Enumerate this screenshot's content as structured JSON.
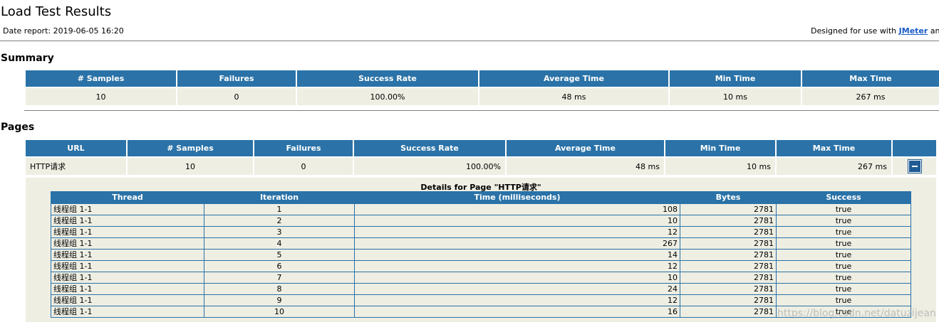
{
  "header": {
    "title": "Load Test Results",
    "date_report": "Date report: 2019-06-05 16:20",
    "designed_prefix": "Designed for use with ",
    "designed_link": "JMeter",
    "designed_suffix": " and"
  },
  "summary": {
    "heading": "Summary",
    "columns": [
      "# Samples",
      "Failures",
      "Success Rate",
      "Average Time",
      "Min Time",
      "Max Time"
    ],
    "row": [
      "10",
      "0",
      "100.00%",
      "48 ms",
      "10 ms",
      "267 ms"
    ]
  },
  "pages": {
    "heading": "Pages",
    "columns": [
      "URL",
      "# Samples",
      "Failures",
      "Success Rate",
      "Average Time",
      "Min Time",
      "Max Time"
    ],
    "row": [
      "HTTP请求",
      "10",
      "0",
      "100.00%",
      "48 ms",
      "10 ms",
      "267 ms"
    ],
    "toggle_icon": "collapse-minus-icon"
  },
  "details": {
    "title": "Details for Page \"HTTP请求\"",
    "columns": [
      "Thread",
      "Iteration",
      "Time (milliseconds)",
      "Bytes",
      "Success"
    ],
    "rows": [
      [
        "线程组 1-1",
        "1",
        "108",
        "2781",
        "true"
      ],
      [
        "线程组 1-1",
        "2",
        "10",
        "2781",
        "true"
      ],
      [
        "线程组 1-1",
        "3",
        "12",
        "2781",
        "true"
      ],
      [
        "线程组 1-1",
        "4",
        "267",
        "2781",
        "true"
      ],
      [
        "线程组 1-1",
        "5",
        "14",
        "2781",
        "true"
      ],
      [
        "线程组 1-1",
        "6",
        "12",
        "2781",
        "true"
      ],
      [
        "线程组 1-1",
        "7",
        "10",
        "2781",
        "true"
      ],
      [
        "线程组 1-1",
        "8",
        "24",
        "2781",
        "true"
      ],
      [
        "线程组 1-1",
        "9",
        "12",
        "2781",
        "true"
      ],
      [
        "线程组 1-1",
        "10",
        "16",
        "2781",
        "true"
      ]
    ]
  },
  "watermark": "https://blog.csdn.net/datuzijean",
  "colors": {
    "header_blue": "#2a72a7",
    "cell_bg": "#eeeee3",
    "link": "#1a5cc8"
  }
}
